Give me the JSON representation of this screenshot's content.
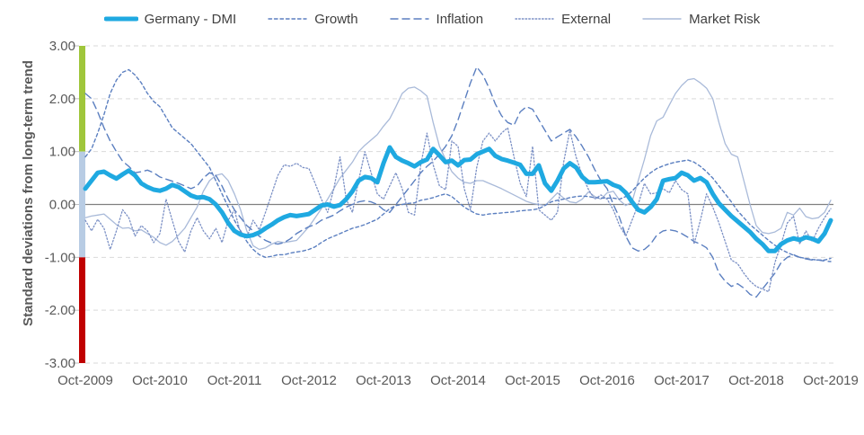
{
  "chart_data": {
    "type": "line",
    "ylabel": "Standard deviations from long-term trend",
    "ylim": [
      -3,
      3
    ],
    "grid": "horizontal-dashed",
    "legend_position": "top-center",
    "y_tick_values": [
      3,
      2,
      1,
      0,
      -1,
      -2,
      -3
    ],
    "y_tick_labels": [
      "3.00",
      "2.00",
      "1.00",
      "0.00",
      "-1.00",
      "-2.00",
      "-3.00"
    ],
    "x_tick_labels": [
      "Oct-2009",
      "Oct-2010",
      "Oct-2011",
      "Oct-2012",
      "Oct-2013",
      "Oct-2014",
      "Oct-2015",
      "Oct-2016",
      "Oct-2017",
      "Oct-2018",
      "Oct-2019"
    ],
    "x_unit": "months",
    "x_range_months": 120,
    "risk_bands": [
      {
        "name": "upper-band",
        "from": 1,
        "to": 3,
        "color": "#9FC63B"
      },
      {
        "name": "middle-band",
        "from": -1,
        "to": 1,
        "color": "#B8CCE4"
      },
      {
        "name": "lower-band",
        "from": -3,
        "to": -1,
        "color": "#C00000"
      }
    ],
    "colors": {
      "grid": "#D9D9D9",
      "zero_line": "#7F7F7F",
      "tick": "#BFBFBF",
      "axis_text": "#595959",
      "legend_text": "#404040"
    },
    "series": [
      {
        "key": "dmi",
        "name": "Germany - DMI",
        "color": "#1FA9E1",
        "width": 5,
        "dash": "",
        "values": [
          0.3,
          0.45,
          0.6,
          0.62,
          0.55,
          0.49,
          0.57,
          0.64,
          0.55,
          0.4,
          0.33,
          0.28,
          0.26,
          0.3,
          0.37,
          0.33,
          0.25,
          0.17,
          0.13,
          0.14,
          0.1,
          0.0,
          -0.15,
          -0.35,
          -0.5,
          -0.57,
          -0.6,
          -0.58,
          -0.53,
          -0.45,
          -0.38,
          -0.3,
          -0.24,
          -0.2,
          -0.22,
          -0.2,
          -0.18,
          -0.1,
          -0.02,
          0.0,
          -0.04,
          -0.01,
          0.1,
          0.25,
          0.45,
          0.52,
          0.5,
          0.42,
          0.78,
          1.08,
          0.9,
          0.83,
          0.78,
          0.72,
          0.8,
          0.85,
          1.05,
          0.93,
          0.8,
          0.83,
          0.74,
          0.84,
          0.85,
          0.95,
          1.0,
          1.05,
          0.92,
          0.86,
          0.83,
          0.79,
          0.75,
          0.58,
          0.58,
          0.74,
          0.4,
          0.26,
          0.45,
          0.68,
          0.78,
          0.7,
          0.52,
          0.42,
          0.42,
          0.43,
          0.44,
          0.37,
          0.33,
          0.22,
          0.05,
          -0.1,
          -0.15,
          -0.05,
          0.1,
          0.45,
          0.48,
          0.5,
          0.6,
          0.55,
          0.45,
          0.5,
          0.42,
          0.2,
          0.02,
          -0.1,
          -0.22,
          -0.32,
          -0.42,
          -0.52,
          -0.65,
          -0.75,
          -0.88,
          -0.88,
          -0.75,
          -0.68,
          -0.64,
          -0.67,
          -0.62,
          -0.65,
          -0.7,
          -0.55,
          -0.3
        ]
      },
      {
        "key": "growth",
        "name": "Growth",
        "color": "#5B7FC0",
        "width": 1.4,
        "dash": "3.5,3",
        "values": [
          0.9,
          1.05,
          1.35,
          1.7,
          2.1,
          2.35,
          2.5,
          2.55,
          2.45,
          2.3,
          2.1,
          1.95,
          1.85,
          1.65,
          1.45,
          1.35,
          1.25,
          1.15,
          1.0,
          0.85,
          0.7,
          0.45,
          0.2,
          -0.05,
          -0.3,
          -0.5,
          -0.7,
          -0.85,
          -0.95,
          -1.0,
          -0.98,
          -0.95,
          -0.95,
          -0.92,
          -0.9,
          -0.88,
          -0.85,
          -0.8,
          -0.72,
          -0.65,
          -0.6,
          -0.55,
          -0.5,
          -0.45,
          -0.42,
          -0.38,
          -0.33,
          -0.28,
          -0.18,
          -0.08,
          -0.02,
          0.0,
          0.02,
          0.03,
          0.08,
          0.1,
          0.13,
          0.17,
          0.2,
          0.15,
          0.05,
          -0.05,
          -0.12,
          -0.18,
          -0.2,
          -0.18,
          -0.17,
          -0.16,
          -0.15,
          -0.14,
          -0.12,
          -0.11,
          -0.1,
          -0.08,
          -0.02,
          0.05,
          0.08,
          0.1,
          0.13,
          0.15,
          0.16,
          0.15,
          0.13,
          0.12,
          0.12,
          0.12,
          0.1,
          0.15,
          0.25,
          0.38,
          0.5,
          0.6,
          0.68,
          0.73,
          0.77,
          0.8,
          0.82,
          0.84,
          0.8,
          0.72,
          0.62,
          0.5,
          0.35,
          0.2,
          0.05,
          -0.12,
          -0.25,
          -0.38,
          -0.48,
          -0.58,
          -0.68,
          -0.77,
          -0.85,
          -0.91,
          -0.96,
          -1.0,
          -1.02,
          -1.04,
          -1.05,
          -1.05,
          -1.02
        ]
      },
      {
        "key": "inflation",
        "name": "Inflation",
        "color": "#5B7FC0",
        "width": 1.4,
        "dash": "8,5",
        "values": [
          2.1,
          2.0,
          1.75,
          1.45,
          1.2,
          1.0,
          0.82,
          0.72,
          0.6,
          0.62,
          0.65,
          0.6,
          0.52,
          0.48,
          0.44,
          0.4,
          0.35,
          0.3,
          0.35,
          0.5,
          0.6,
          0.55,
          0.35,
          0.1,
          -0.1,
          -0.25,
          -0.4,
          -0.5,
          -0.6,
          -0.68,
          -0.73,
          -0.75,
          -0.72,
          -0.65,
          -0.55,
          -0.48,
          -0.42,
          -0.38,
          -0.3,
          -0.25,
          -0.2,
          -0.12,
          -0.05,
          0.0,
          0.05,
          0.07,
          0.05,
          0.0,
          -0.1,
          -0.15,
          0.0,
          0.15,
          0.3,
          0.45,
          0.6,
          0.72,
          0.82,
          0.95,
          1.1,
          1.3,
          1.6,
          1.95,
          2.3,
          2.6,
          2.45,
          2.2,
          1.9,
          1.68,
          1.55,
          1.5,
          1.75,
          1.85,
          1.8,
          1.6,
          1.4,
          1.2,
          1.28,
          1.35,
          1.42,
          1.28,
          1.1,
          0.9,
          0.66,
          0.45,
          0.3,
          0.0,
          -0.25,
          -0.6,
          -0.82,
          -0.88,
          -0.85,
          -0.75,
          -0.58,
          -0.5,
          -0.48,
          -0.5,
          -0.55,
          -0.62,
          -0.7,
          -0.75,
          -0.82,
          -1.0,
          -1.3,
          -1.45,
          -1.55,
          -1.5,
          -1.58,
          -1.7,
          -1.75,
          -1.6,
          -1.45,
          -1.3,
          -1.1,
          -1.0,
          -0.95,
          -1.0,
          -1.03,
          -1.05,
          -1.05,
          -1.07,
          -1.08
        ]
      },
      {
        "key": "external",
        "name": "External",
        "color": "#7B90C5",
        "width": 1.3,
        "dash": "1.5,2.2",
        "values": [
          -0.3,
          -0.5,
          -0.28,
          -0.45,
          -0.85,
          -0.5,
          -0.1,
          -0.25,
          -0.6,
          -0.4,
          -0.5,
          -0.72,
          -0.55,
          0.1,
          -0.3,
          -0.7,
          -0.9,
          -0.5,
          -0.25,
          -0.5,
          -0.65,
          -0.45,
          -0.72,
          -0.3,
          -0.1,
          -0.55,
          -0.62,
          -0.3,
          -0.48,
          -0.15,
          0.2,
          0.55,
          0.75,
          0.72,
          0.78,
          0.7,
          0.68,
          0.4,
          0.1,
          -0.15,
          0.3,
          0.9,
          0.1,
          -0.15,
          0.45,
          1.0,
          0.6,
          0.2,
          0.1,
          0.35,
          0.6,
          0.3,
          -0.15,
          -0.2,
          0.75,
          1.35,
          0.75,
          0.35,
          0.28,
          1.2,
          1.1,
          0.3,
          -0.1,
          0.7,
          1.2,
          1.35,
          1.2,
          1.35,
          1.45,
          0.9,
          0.4,
          0.15,
          1.1,
          -0.1,
          -0.2,
          -0.3,
          -0.15,
          0.8,
          1.4,
          0.9,
          0.55,
          0.28,
          0.1,
          0.18,
          0.1,
          -0.1,
          -0.4,
          -0.6,
          -0.3,
          0.0,
          0.4,
          0.2,
          0.22,
          0.3,
          0.22,
          0.45,
          0.28,
          0.2,
          -0.75,
          -0.3,
          0.2,
          -0.05,
          -0.35,
          -0.7,
          -1.05,
          -1.12,
          -1.3,
          -1.45,
          -1.55,
          -1.6,
          -1.65,
          -1.1,
          -0.75,
          -0.35,
          -0.22,
          -0.75,
          -0.5,
          -0.7,
          -0.45,
          -0.25,
          -0.08
        ]
      },
      {
        "key": "market_risk",
        "name": "Market Risk",
        "color": "#A9BAD9",
        "width": 1.3,
        "dash": "",
        "values": [
          -0.25,
          -0.22,
          -0.2,
          -0.18,
          -0.28,
          -0.38,
          -0.45,
          -0.44,
          -0.5,
          -0.48,
          -0.55,
          -0.62,
          -0.72,
          -0.77,
          -0.7,
          -0.58,
          -0.45,
          -0.25,
          -0.05,
          0.25,
          0.45,
          0.55,
          0.58,
          0.45,
          0.2,
          -0.1,
          -0.5,
          -0.78,
          -0.85,
          -0.82,
          -0.75,
          -0.7,
          -0.72,
          -0.7,
          -0.68,
          -0.55,
          -0.42,
          -0.25,
          -0.08,
          0.1,
          0.3,
          0.5,
          0.65,
          0.8,
          1.0,
          1.12,
          1.22,
          1.32,
          1.48,
          1.62,
          1.85,
          2.1,
          2.2,
          2.22,
          2.15,
          2.05,
          1.55,
          1.1,
          0.85,
          0.62,
          0.5,
          0.42,
          0.4,
          0.45,
          0.45,
          0.4,
          0.35,
          0.3,
          0.24,
          0.18,
          0.12,
          0.06,
          0.02,
          0.0,
          -0.02,
          0.1,
          0.22,
          0.12,
          0.05,
          0.03,
          0.1,
          0.24,
          0.15,
          0.1,
          0.22,
          0.25,
          0.08,
          -0.02,
          0.05,
          0.45,
          0.85,
          1.3,
          1.58,
          1.65,
          1.88,
          2.1,
          2.25,
          2.36,
          2.38,
          2.3,
          2.2,
          2.0,
          1.55,
          1.15,
          0.95,
          0.9,
          0.45,
          0.0,
          -0.4,
          -0.53,
          -0.55,
          -0.52,
          -0.45,
          -0.15,
          -0.2,
          -0.07,
          -0.23,
          -0.27,
          -0.25,
          -0.15,
          0.08
        ]
      }
    ]
  }
}
